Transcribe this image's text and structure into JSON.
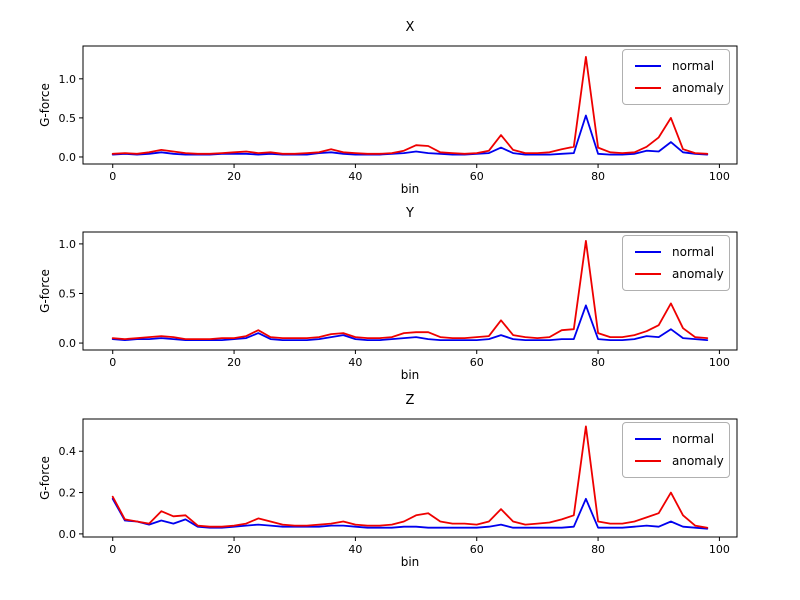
{
  "figure": {
    "background": "#ffffff",
    "axis_color": "#000000",
    "legend_border_color": "#b0b0b0"
  },
  "colors": {
    "normal": "#0000ee",
    "anomaly": "#ee0000"
  },
  "chart_data": [
    {
      "type": "line",
      "title": "X",
      "xlabel": "bin",
      "ylabel": "G-force",
      "xlim": [
        -4.9,
        102.9
      ],
      "ylim": [
        -0.09,
        1.42
      ],
      "xtick_values": [
        0,
        20,
        40,
        60,
        80,
        100
      ],
      "xtick_labels": [
        "0",
        "20",
        "40",
        "60",
        "80",
        "100"
      ],
      "ytick_values": [
        0.0,
        0.5,
        1.0
      ],
      "ytick_labels": [
        "0.0",
        "0.5",
        "1.0"
      ],
      "grid": false,
      "legend_position": "upper right",
      "x": [
        0,
        2,
        4,
        6,
        8,
        10,
        12,
        14,
        16,
        18,
        20,
        22,
        24,
        26,
        28,
        30,
        32,
        34,
        36,
        38,
        40,
        42,
        44,
        46,
        48,
        50,
        52,
        54,
        56,
        58,
        60,
        62,
        64,
        66,
        68,
        70,
        72,
        74,
        76,
        78,
        80,
        82,
        84,
        86,
        88,
        90,
        92,
        94,
        96,
        98
      ],
      "series": [
        {
          "name": "normal",
          "color": "#0000ee",
          "values": [
            0.03,
            0.04,
            0.03,
            0.04,
            0.06,
            0.04,
            0.03,
            0.03,
            0.03,
            0.04,
            0.04,
            0.04,
            0.03,
            0.04,
            0.03,
            0.03,
            0.03,
            0.05,
            0.06,
            0.04,
            0.03,
            0.03,
            0.03,
            0.04,
            0.05,
            0.07,
            0.05,
            0.04,
            0.03,
            0.03,
            0.04,
            0.05,
            0.12,
            0.05,
            0.03,
            0.03,
            0.03,
            0.04,
            0.05,
            0.53,
            0.04,
            0.03,
            0.03,
            0.04,
            0.08,
            0.07,
            0.19,
            0.06,
            0.04,
            0.03
          ]
        },
        {
          "name": "anomaly",
          "color": "#ee0000",
          "values": [
            0.04,
            0.05,
            0.04,
            0.06,
            0.09,
            0.07,
            0.05,
            0.04,
            0.04,
            0.05,
            0.06,
            0.07,
            0.05,
            0.06,
            0.04,
            0.04,
            0.05,
            0.06,
            0.1,
            0.06,
            0.05,
            0.04,
            0.04,
            0.05,
            0.08,
            0.15,
            0.14,
            0.06,
            0.05,
            0.04,
            0.05,
            0.08,
            0.28,
            0.09,
            0.05,
            0.05,
            0.06,
            0.1,
            0.13,
            1.28,
            0.12,
            0.06,
            0.05,
            0.06,
            0.13,
            0.25,
            0.5,
            0.1,
            0.05,
            0.04
          ]
        }
      ]
    },
    {
      "type": "line",
      "title": "Y",
      "xlabel": "bin",
      "ylabel": "G-force",
      "xlim": [
        -4.9,
        102.9
      ],
      "ylim": [
        -0.07,
        1.12
      ],
      "xtick_values": [
        0,
        20,
        40,
        60,
        80,
        100
      ],
      "xtick_labels": [
        "0",
        "20",
        "40",
        "60",
        "80",
        "100"
      ],
      "ytick_values": [
        0.0,
        0.5,
        1.0
      ],
      "ytick_labels": [
        "0.0",
        "0.5",
        "1.0"
      ],
      "grid": false,
      "legend_position": "upper right",
      "x": [
        0,
        2,
        4,
        6,
        8,
        10,
        12,
        14,
        16,
        18,
        20,
        22,
        24,
        26,
        28,
        30,
        32,
        34,
        36,
        38,
        40,
        42,
        44,
        46,
        48,
        50,
        52,
        54,
        56,
        58,
        60,
        62,
        64,
        66,
        68,
        70,
        72,
        74,
        76,
        78,
        80,
        82,
        84,
        86,
        88,
        90,
        92,
        94,
        96,
        98
      ],
      "series": [
        {
          "name": "normal",
          "color": "#0000ee",
          "values": [
            0.04,
            0.03,
            0.04,
            0.04,
            0.05,
            0.04,
            0.03,
            0.03,
            0.03,
            0.03,
            0.04,
            0.05,
            0.1,
            0.04,
            0.03,
            0.03,
            0.03,
            0.04,
            0.06,
            0.08,
            0.04,
            0.03,
            0.03,
            0.04,
            0.05,
            0.06,
            0.04,
            0.03,
            0.03,
            0.03,
            0.03,
            0.04,
            0.08,
            0.04,
            0.03,
            0.03,
            0.03,
            0.04,
            0.04,
            0.38,
            0.04,
            0.03,
            0.03,
            0.04,
            0.07,
            0.06,
            0.14,
            0.05,
            0.04,
            0.03
          ]
        },
        {
          "name": "anomaly",
          "color": "#ee0000",
          "values": [
            0.05,
            0.04,
            0.05,
            0.06,
            0.07,
            0.06,
            0.04,
            0.04,
            0.04,
            0.05,
            0.05,
            0.07,
            0.13,
            0.06,
            0.05,
            0.05,
            0.05,
            0.06,
            0.09,
            0.1,
            0.06,
            0.05,
            0.05,
            0.06,
            0.1,
            0.11,
            0.11,
            0.06,
            0.05,
            0.05,
            0.06,
            0.07,
            0.23,
            0.08,
            0.06,
            0.05,
            0.06,
            0.13,
            0.14,
            1.03,
            0.1,
            0.06,
            0.06,
            0.08,
            0.12,
            0.18,
            0.4,
            0.15,
            0.06,
            0.05
          ]
        }
      ]
    },
    {
      "type": "line",
      "title": "Z",
      "xlabel": "bin",
      "ylabel": "G-force",
      "xlim": [
        -4.9,
        102.9
      ],
      "ylim": [
        -0.015,
        0.556
      ],
      "xtick_values": [
        0,
        20,
        40,
        60,
        80,
        100
      ],
      "xtick_labels": [
        "0",
        "20",
        "40",
        "60",
        "80",
        "100"
      ],
      "ytick_values": [
        0.0,
        0.2,
        0.4
      ],
      "ytick_labels": [
        "0.0",
        "0.2",
        "0.4"
      ],
      "grid": false,
      "legend_position": "upper right",
      "x": [
        0,
        2,
        4,
        6,
        8,
        10,
        12,
        14,
        16,
        18,
        20,
        22,
        24,
        26,
        28,
        30,
        32,
        34,
        36,
        38,
        40,
        42,
        44,
        46,
        48,
        50,
        52,
        54,
        56,
        58,
        60,
        62,
        64,
        66,
        68,
        70,
        72,
        74,
        76,
        78,
        80,
        82,
        84,
        86,
        88,
        90,
        92,
        94,
        96,
        98
      ],
      "series": [
        {
          "name": "normal",
          "color": "#0000ee",
          "values": [
            0.17,
            0.065,
            0.06,
            0.045,
            0.065,
            0.05,
            0.07,
            0.035,
            0.03,
            0.03,
            0.035,
            0.04,
            0.045,
            0.04,
            0.035,
            0.035,
            0.035,
            0.035,
            0.04,
            0.04,
            0.035,
            0.03,
            0.03,
            0.03,
            0.035,
            0.035,
            0.03,
            0.03,
            0.03,
            0.03,
            0.03,
            0.035,
            0.045,
            0.03,
            0.03,
            0.03,
            0.03,
            0.03,
            0.035,
            0.17,
            0.03,
            0.03,
            0.03,
            0.035,
            0.04,
            0.035,
            0.06,
            0.035,
            0.03,
            0.025
          ]
        },
        {
          "name": "anomaly",
          "color": "#ee0000",
          "values": [
            0.18,
            0.07,
            0.06,
            0.05,
            0.11,
            0.085,
            0.09,
            0.04,
            0.035,
            0.035,
            0.04,
            0.05,
            0.075,
            0.06,
            0.045,
            0.04,
            0.04,
            0.045,
            0.05,
            0.06,
            0.045,
            0.04,
            0.04,
            0.045,
            0.06,
            0.09,
            0.1,
            0.06,
            0.05,
            0.05,
            0.045,
            0.06,
            0.12,
            0.06,
            0.045,
            0.05,
            0.055,
            0.07,
            0.09,
            0.52,
            0.06,
            0.05,
            0.05,
            0.06,
            0.08,
            0.1,
            0.2,
            0.09,
            0.04,
            0.03
          ]
        }
      ]
    }
  ]
}
